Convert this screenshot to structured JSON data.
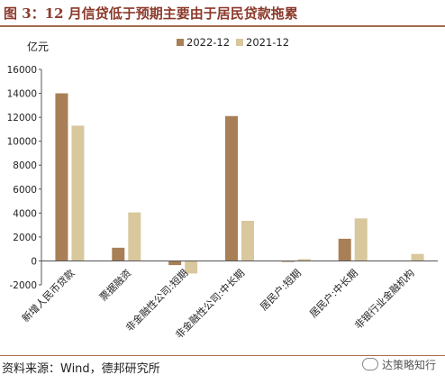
{
  "figure_title": "图 3：12 月信贷低于预期主要由于居民贷款拖累",
  "source_note": "资料来源：Wind，德邦研究所",
  "watermark": {
    "icon": "wechat-icon",
    "text": "达策略知行"
  },
  "colors": {
    "series_2022": "#a87f56",
    "series_2021": "#d9c79d",
    "title": "#8b3a2b",
    "rule": "#a66b4e"
  },
  "chart_data": {
    "type": "bar",
    "ylabel": "亿元",
    "ylim": [
      -2000,
      16000
    ],
    "yticks": [
      -2000,
      0,
      2000,
      4000,
      6000,
      8000,
      10000,
      12000,
      14000,
      16000
    ],
    "grid": false,
    "legend_position": "top",
    "categories": [
      "新增人民币贷款",
      "票据融资",
      "非金融性公司:短期",
      "非金融性公司:中长期",
      "居民户:短期",
      "居民户:中长期",
      "非银行业金融机构"
    ],
    "series": [
      {
        "name": "2022-12",
        "values": [
          14000,
          1100,
          -350,
          12100,
          -80,
          1850,
          0
        ]
      },
      {
        "name": "2021-12",
        "values": [
          11300,
          4050,
          -1050,
          3350,
          150,
          3550,
          580
        ]
      }
    ]
  }
}
